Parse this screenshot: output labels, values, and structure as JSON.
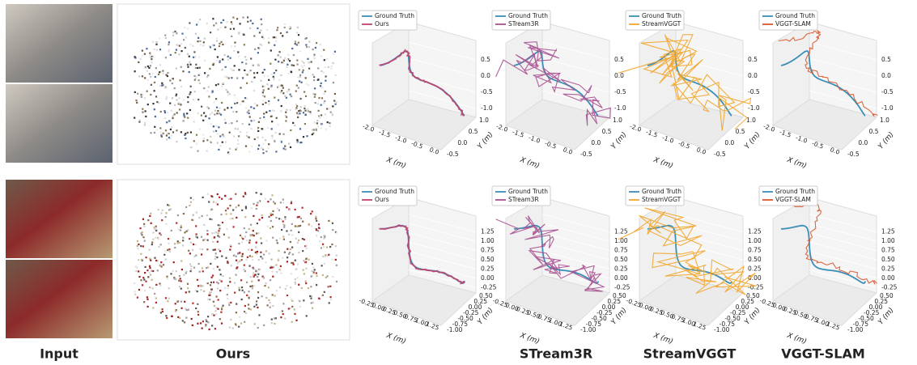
{
  "columns": [
    "Input",
    "Ours",
    "STream3R",
    "StreamVGGT",
    "VGGT-SLAM"
  ],
  "rows": [
    {
      "plots": [
        {
          "legend": [
            "Ground Truth",
            "Ours"
          ],
          "x_label": "X (m)",
          "y_label": "Y (m)",
          "x_ticks": [
            "-2.0",
            "-1.5",
            "-1.0",
            "-0.5",
            "0.0"
          ],
          "y_ticks": [
            "-0.5",
            "0.0",
            "0.5",
            "1.0"
          ],
          "z_ticks": [
            "0.5",
            "0.0",
            "-0.5",
            "-1.0"
          ]
        },
        {
          "legend": [
            "Ground Truth",
            "STream3R"
          ],
          "x_label": "X (m)",
          "y_label": "Y (m)",
          "x_ticks": [
            "-2.0",
            "-1.5",
            "-1.0",
            "-0.5",
            "0.0"
          ],
          "y_ticks": [
            "-0.5",
            "0.0",
            "0.5",
            "1.0"
          ],
          "z_ticks": [
            "0.5",
            "0.0",
            "-0.5",
            "-1.0"
          ]
        },
        {
          "legend": [
            "Ground Truth",
            "StreamVGGT"
          ],
          "x_label": "X (m)",
          "y_label": "Y (m)",
          "x_ticks": [
            "-2.0",
            "-1.5",
            "-1.0",
            "-0.5",
            "0.0"
          ],
          "y_ticks": [
            "-0.5",
            "0.0",
            "0.5",
            "1.0"
          ],
          "z_ticks": [
            "0.5",
            "0.0",
            "-0.5",
            "-1.0"
          ]
        },
        {
          "legend": [
            "Ground Truth",
            "VGGT-SLAM"
          ],
          "x_label": "X (m)",
          "y_label": "Y (m)",
          "x_ticks": [
            "-2.0",
            "-1.5",
            "-1.0",
            "-0.5",
            "0.0"
          ],
          "y_ticks": [
            "-0.5",
            "0.0",
            "0.5",
            "1.0"
          ],
          "z_ticks": [
            "0.5",
            "0.0",
            "-0.5",
            "-1.0"
          ]
        }
      ]
    },
    {
      "plots": [
        {
          "legend": [
            "Ground Truth",
            "Ours"
          ],
          "x_label": "X (m)",
          "y_label": "Y (m)",
          "x_ticks": [
            "-0.25",
            "0.00",
            "0.25",
            "0.50",
            "0.75",
            "1.00",
            "1.25"
          ],
          "y_ticks": [
            "-1.00",
            "-0.75",
            "-0.50",
            "-0.25",
            "0.00",
            "0.25",
            "0.50"
          ],
          "z_ticks": [
            "1.25",
            "1.00",
            "0.75",
            "0.50",
            "0.25",
            "0.00",
            "-0.25"
          ]
        },
        {
          "legend": [
            "Ground Truth",
            "STream3R"
          ],
          "x_label": "X (m)",
          "y_label": "Y (m)",
          "x_ticks": [
            "-0.25",
            "0.00",
            "0.25",
            "0.50",
            "0.75",
            "1.00",
            "1.25"
          ],
          "y_ticks": [
            "-1.00",
            "-0.75",
            "-0.50",
            "-0.25",
            "0.00",
            "0.25",
            "0.50"
          ],
          "z_ticks": [
            "1.25",
            "1.00",
            "0.75",
            "0.50",
            "0.25",
            "0.00",
            "-0.25"
          ]
        },
        {
          "legend": [
            "Ground Truth",
            "StreamVGGT"
          ],
          "x_label": "X (m)",
          "y_label": "Y (m)",
          "x_ticks": [
            "-0.25",
            "0.00",
            "0.25",
            "0.50",
            "0.75",
            "1.00",
            "1.25"
          ],
          "y_ticks": [
            "-1.00",
            "-0.75",
            "-0.50",
            "-0.25",
            "0.00",
            "0.25",
            "0.50"
          ],
          "z_ticks": [
            "1.25",
            "1.00",
            "0.75",
            "0.50",
            "0.25",
            "0.00",
            "-0.25"
          ]
        },
        {
          "legend": [
            "Ground Truth",
            "VGGT-SLAM"
          ],
          "x_label": "X (m)",
          "y_label": "Y (m)",
          "x_ticks": [
            "-0.25",
            "0.00",
            "0.25",
            "0.50",
            "0.75",
            "1.00",
            "1.25"
          ],
          "y_ticks": [
            "-1.00",
            "-0.75",
            "-0.50",
            "-0.25",
            "0.00",
            "0.25",
            "0.50"
          ],
          "z_ticks": [
            "1.25",
            "1.00",
            "0.75",
            "0.50",
            "0.25",
            "0.00",
            "-0.25"
          ]
        }
      ]
    }
  ]
}
